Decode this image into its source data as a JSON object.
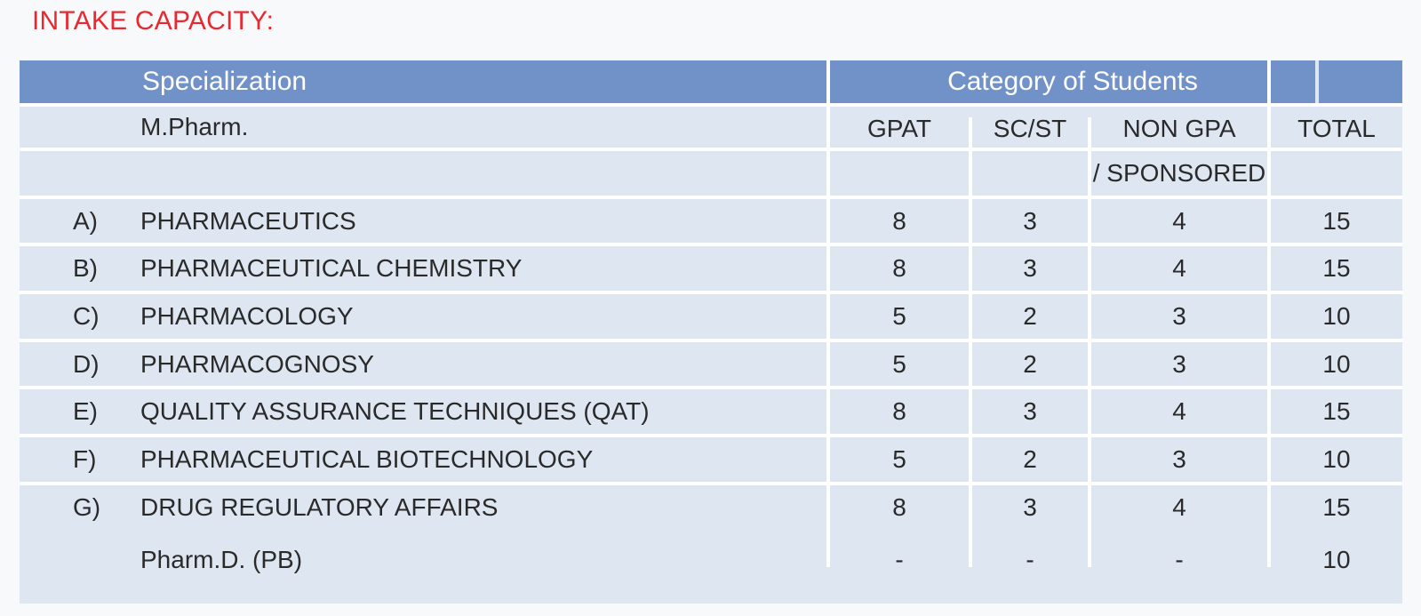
{
  "title": "INTAKE CAPACITY:",
  "header": {
    "specialization": "Specialization",
    "category": "Category of Students",
    "total_blank": ""
  },
  "subheader": {
    "program": "M.Pharm.",
    "gpat": "GPAT",
    "scst": "SC/ST",
    "nongpa_line1": "NON GPA",
    "nongpa_line2": "/ SPONSORED",
    "total": "TOTAL"
  },
  "rows": [
    {
      "label": "A)",
      "name": "PHARMACEUTICS",
      "gpat": "8",
      "scst": "3",
      "nongpa": "4",
      "total": "15"
    },
    {
      "label": "B)",
      "name": "PHARMACEUTICAL CHEMISTRY",
      "gpat": "8",
      "scst": "3",
      "nongpa": "4",
      "total": "15"
    },
    {
      "label": "C)",
      "name": "PHARMACOLOGY",
      "gpat": "5",
      "scst": "2",
      "nongpa": "3",
      "total": "10"
    },
    {
      "label": "D)",
      "name": "PHARMACOGNOSY",
      "gpat": "5",
      "scst": "2",
      "nongpa": "3",
      "total": "10"
    },
    {
      "label": "E)",
      "name": "QUALITY ASSURANCE TECHNIQUES (QAT)",
      "gpat": "8",
      "scst": "3",
      "nongpa": "4",
      "total": "15"
    },
    {
      "label": "F)",
      "name": "PHARMACEUTICAL BIOTECHNOLOGY",
      "gpat": "5",
      "scst": "2",
      "nongpa": "3",
      "total": "10"
    },
    {
      "label": "G)",
      "name": "DRUG REGULATORY AFFAIRS",
      "gpat": "8",
      "scst": "3",
      "nongpa": "4",
      "total": "15"
    }
  ],
  "pharmd": {
    "name": "Pharm.D. (PB)",
    "gpat": "-",
    "scst": "-",
    "nongpa": "-",
    "total": "10"
  }
}
